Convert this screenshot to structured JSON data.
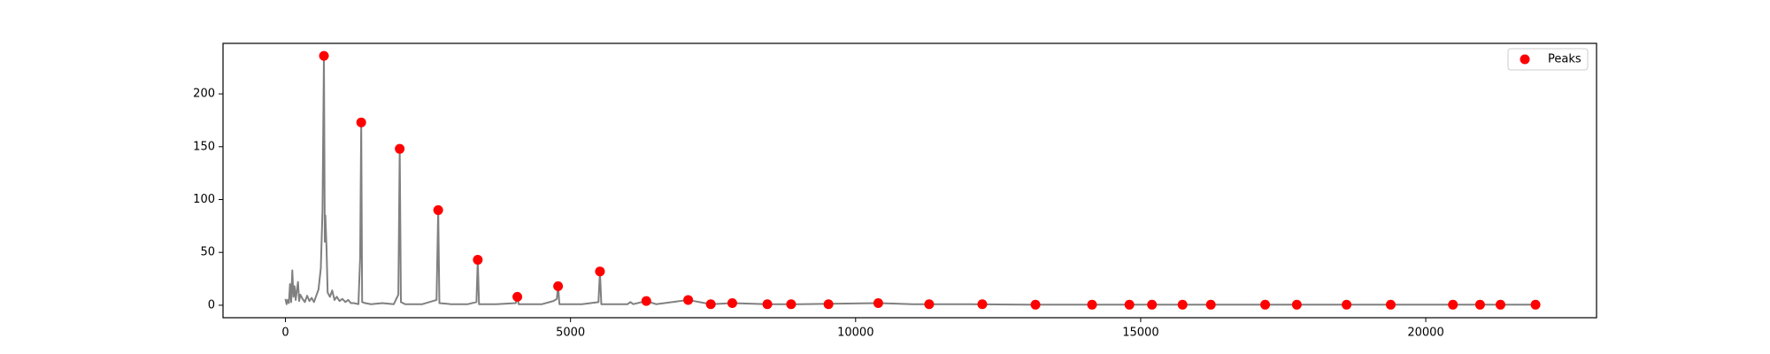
{
  "chart_data": {
    "type": "line",
    "xlim": [
      -1095,
      22995
    ],
    "ylim": [
      -11.8,
      247.8
    ],
    "xticks": [
      0,
      5000,
      10000,
      15000,
      20000
    ],
    "yticks": [
      0,
      50,
      100,
      150,
      200
    ],
    "legend": "upper right",
    "series": [
      {
        "type": "line",
        "color": "#808080",
        "x": [
          0,
          20,
          40,
          60,
          80,
          100,
          120,
          140,
          160,
          180,
          200,
          220,
          240,
          260,
          300,
          340,
          380,
          420,
          460,
          500,
          540,
          580,
          620,
          650,
          660,
          675,
          690,
          700,
          720,
          740,
          780,
          820,
          860,
          900,
          950,
          1000,
          1050,
          1100,
          1150,
          1200,
          1280,
          1310,
          1329,
          1345,
          1400,
          1500,
          1700,
          1900,
          1980,
          2004,
          2025,
          2100,
          2400,
          2650,
          2679,
          2700,
          2900,
          3200,
          3350,
          3373,
          3395,
          3700,
          4040,
          4067,
          4090,
          4500,
          4700,
          4760,
          4782,
          4805,
          5200,
          5490,
          5516,
          5540,
          6000,
          6050,
          6100,
          6329,
          6500,
          7063,
          7460,
          7837,
          8452,
          9000,
          10397,
          11000,
          12000,
          13000,
          15000,
          18000,
          21925
        ],
        "values": [
          6,
          1,
          5,
          2,
          20,
          3,
          33,
          8,
          18,
          5,
          14,
          22,
          4,
          10,
          6,
          3,
          9,
          4,
          7,
          3,
          9,
          15,
          35,
          90,
          150,
          236,
          60,
          85,
          55,
          12,
          8,
          14,
          5,
          8,
          4,
          6,
          3,
          5,
          2,
          2,
          1,
          45,
          173,
          3,
          2,
          1,
          2,
          1,
          10,
          148,
          3,
          1,
          1,
          5,
          90,
          2,
          1,
          1,
          3,
          43,
          1,
          1,
          2,
          8,
          1,
          1,
          4,
          6,
          18,
          1,
          1,
          3,
          32,
          1,
          1,
          3,
          1,
          4,
          1,
          5,
          1,
          2,
          1,
          1,
          2,
          1,
          1,
          0.5,
          0.5,
          0.5,
          0.5
        ]
      },
      {
        "type": "scatter",
        "name": "Peaks",
        "color": "#ff0000",
        "x": [
          675,
          1329,
          2004,
          2679,
          3373,
          4067,
          4782,
          5516,
          6329,
          7063,
          7460,
          7837,
          8452,
          8869,
          9524,
          10397,
          11290,
          12222,
          13155,
          14147,
          14802,
          15198,
          15734,
          16230,
          17183,
          17738,
          18611,
          19385,
          20476,
          20952,
          21310,
          21925
        ],
        "values": [
          236,
          173,
          148,
          90,
          43,
          8,
          18,
          32,
          4,
          5,
          1,
          2,
          1,
          1,
          1,
          2,
          1,
          1,
          0.5,
          0.5,
          0.5,
          0.5,
          0.5,
          0.5,
          0.5,
          0.5,
          0.5,
          0.5,
          0.5,
          0.5,
          0.5,
          0.5
        ]
      }
    ]
  }
}
